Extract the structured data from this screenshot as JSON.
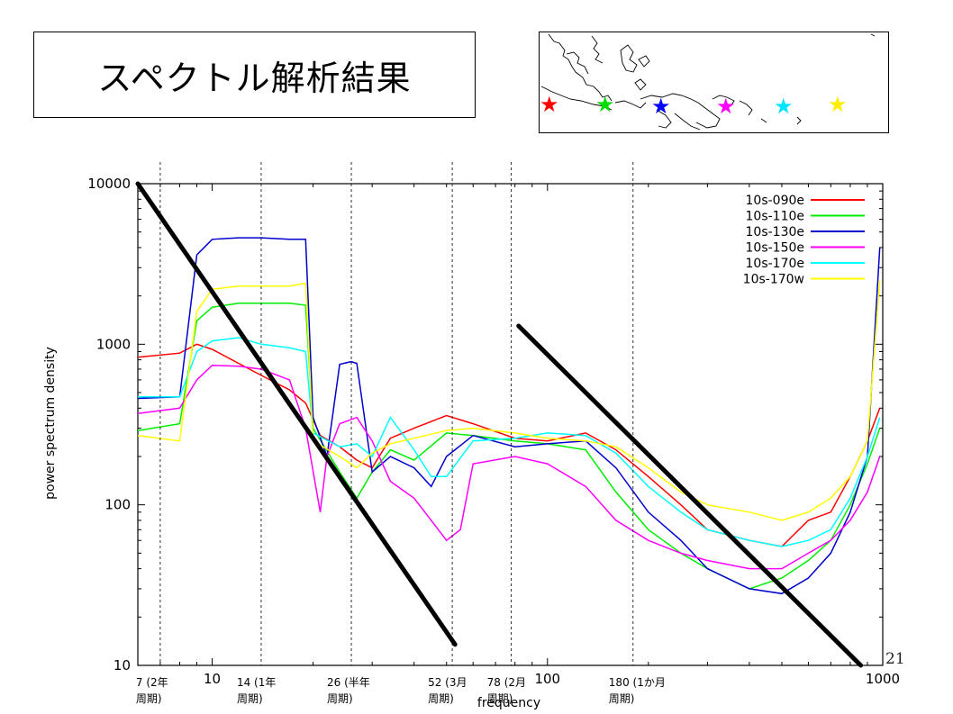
{
  "slide": {
    "title": "スペクトル解析結果",
    "page_number": "21"
  },
  "map": {
    "description_icons": [
      "coastline-map"
    ],
    "markers": [
      {
        "name": "red-star",
        "color": "#ff0000"
      },
      {
        "name": "green-star",
        "color": "#00dd00"
      },
      {
        "name": "blue-star",
        "color": "#0000ff"
      },
      {
        "name": "magenta-star",
        "color": "#ff00ff"
      },
      {
        "name": "cyan-star",
        "color": "#00ffff"
      },
      {
        "name": "yellow-star",
        "color": "#ffff00"
      }
    ]
  },
  "chart_data": {
    "type": "line",
    "xscale": "log",
    "yscale": "log",
    "xlim": [
      6,
      1000
    ],
    "ylim": [
      10,
      10000
    ],
    "xlabel": "frequency",
    "ylabel": "power spectrum density",
    "xticks": [
      "10",
      "100",
      "1000"
    ],
    "yticks": [
      "10000",
      "1000",
      "100",
      "10"
    ],
    "legend_position": "top-right",
    "annotations": [
      {
        "x": 7,
        "line1": "7 (2年",
        "line2": "周期)"
      },
      {
        "x": 14,
        "line1": "14 (1年",
        "line2": "周期)"
      },
      {
        "x": 26,
        "line1": "26 (半年",
        "line2": "周期)"
      },
      {
        "x": 52,
        "line1": "52 (3月",
        "line2": "周期)"
      },
      {
        "x": 78,
        "line1": "78 (2月",
        "line2": "周期)"
      },
      {
        "x": 180,
        "line1": "180 (1か月",
        "line2": "周期)"
      }
    ],
    "trend_lines": [
      {
        "x": [
          6,
          53
        ],
        "y": [
          10000,
          13.5
        ]
      },
      {
        "x": [
          82,
          860
        ],
        "y": [
          1300,
          10
        ]
      }
    ],
    "series": [
      {
        "name": "10s-090e",
        "color": "#ff0000",
        "x": [
          6,
          8,
          9,
          10,
          12,
          14,
          17,
          19,
          21,
          24,
          27,
          30,
          34,
          40,
          50,
          60,
          80,
          100,
          130,
          160,
          200,
          250,
          300,
          400,
          500,
          600,
          700,
          800,
          900,
          980
        ],
        "y": [
          830,
          880,
          1000,
          930,
          760,
          640,
          520,
          430,
          270,
          230,
          190,
          170,
          260,
          300,
          360,
          320,
          260,
          250,
          280,
          220,
          150,
          100,
          70,
          60,
          55,
          80,
          90,
          150,
          250,
          400
        ]
      },
      {
        "name": "10s-110e",
        "color": "#00ee00",
        "x": [
          6,
          8,
          9,
          10,
          12,
          14,
          17,
          19,
          20,
          24,
          27,
          30,
          34,
          40,
          50,
          60,
          80,
          100,
          130,
          160,
          200,
          250,
          300,
          400,
          500,
          600,
          700,
          800,
          900,
          980
        ],
        "y": [
          290,
          320,
          1400,
          1700,
          1800,
          1800,
          1800,
          1750,
          300,
          160,
          110,
          160,
          220,
          190,
          280,
          270,
          250,
          240,
          220,
          120,
          70,
          50,
          40,
          30,
          35,
          45,
          60,
          100,
          180,
          300
        ]
      },
      {
        "name": "10s-130e",
        "color": "#0000cc",
        "x": [
          6,
          8,
          9,
          10,
          12,
          14,
          17,
          19,
          20,
          22,
          24,
          26,
          27,
          30,
          34,
          40,
          45,
          50,
          60,
          80,
          100,
          130,
          160,
          200,
          250,
          300,
          400,
          500,
          600,
          700,
          800,
          900,
          980
        ],
        "y": [
          460,
          470,
          3600,
          4500,
          4600,
          4600,
          4500,
          4500,
          350,
          200,
          750,
          780,
          760,
          160,
          200,
          170,
          130,
          200,
          270,
          230,
          240,
          250,
          170,
          90,
          60,
          40,
          30,
          28,
          35,
          50,
          90,
          200,
          4000
        ]
      },
      {
        "name": "10s-150e",
        "color": "#ff00ff",
        "x": [
          6,
          8,
          9,
          10,
          12,
          14,
          17,
          19,
          21,
          22,
          24,
          27,
          30,
          34,
          40,
          45,
          50,
          55,
          60,
          80,
          100,
          130,
          160,
          200,
          250,
          300,
          400,
          500,
          600,
          700,
          800,
          900,
          980
        ],
        "y": [
          370,
          400,
          600,
          740,
          730,
          700,
          600,
          300,
          90,
          200,
          320,
          350,
          250,
          140,
          110,
          80,
          60,
          70,
          180,
          200,
          180,
          130,
          80,
          60,
          50,
          45,
          40,
          40,
          50,
          60,
          80,
          120,
          200
        ]
      },
      {
        "name": "10s-170e",
        "color": "#00ffff",
        "x": [
          6,
          8,
          9,
          10,
          12,
          14,
          17,
          19,
          20,
          24,
          27,
          30,
          34,
          40,
          45,
          50,
          60,
          80,
          100,
          130,
          160,
          200,
          250,
          300,
          400,
          500,
          600,
          700,
          800,
          900,
          980
        ],
        "y": [
          470,
          470,
          900,
          1050,
          1100,
          1000,
          950,
          900,
          280,
          230,
          240,
          200,
          350,
          220,
          150,
          150,
          250,
          260,
          280,
          270,
          210,
          130,
          90,
          70,
          60,
          55,
          60,
          70,
          110,
          200,
          350
        ]
      },
      {
        "name": "10s-170w",
        "color": "#ffff00",
        "x": [
          6,
          8,
          9,
          10,
          12,
          14,
          17,
          19,
          20,
          24,
          27,
          30,
          34,
          40,
          50,
          60,
          80,
          100,
          130,
          160,
          200,
          250,
          300,
          400,
          500,
          600,
          700,
          800,
          900,
          980
        ],
        "y": [
          270,
          250,
          1600,
          2200,
          2300,
          2300,
          2300,
          2400,
          250,
          200,
          170,
          210,
          240,
          260,
          290,
          300,
          280,
          260,
          250,
          230,
          170,
          120,
          100,
          90,
          80,
          90,
          110,
          150,
          250,
          2500
        ]
      }
    ]
  }
}
